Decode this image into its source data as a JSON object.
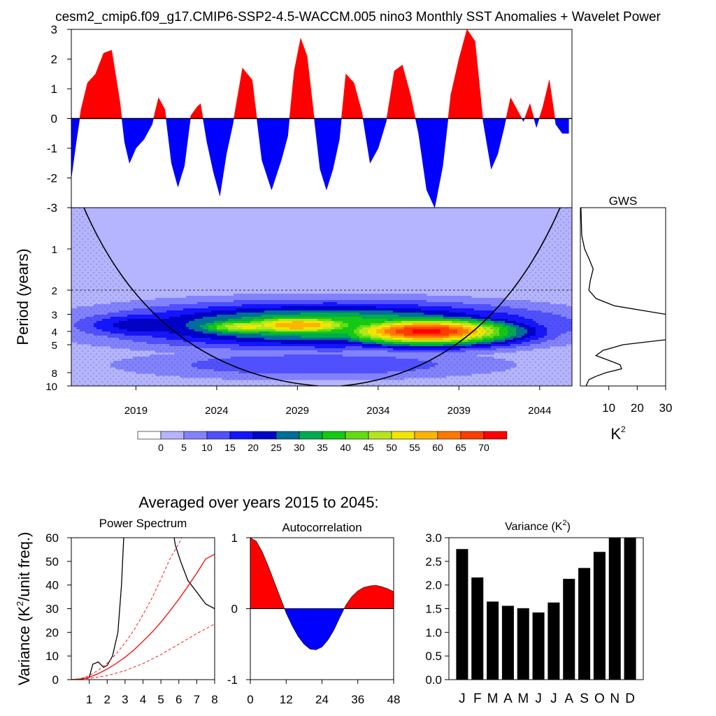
{
  "title": "cesm2_cmip6.f09_g17.CMIP6-SSP2-4.5-WACCM.005 nino3 Monthly SST Anomalies + Wavelet Power",
  "colors": {
    "positive": "#ff0000",
    "negative": "#0000ff",
    "bars": "#000000"
  },
  "chart_data": [
    {
      "id": "timeseries",
      "type": "area",
      "description_label": "nino3 SST anomaly",
      "x_range": [
        2015,
        2046
      ],
      "ylim": [
        -3,
        3
      ],
      "yticks": [
        3,
        2,
        1,
        0,
        -1,
        -2,
        -3
      ],
      "x": [
        2015.0,
        2015.3,
        2015.6,
        2016.0,
        2016.5,
        2017.0,
        2017.5,
        2018.0,
        2018.3,
        2018.6,
        2019.0,
        2019.5,
        2020.0,
        2020.4,
        2020.8,
        2021.2,
        2021.6,
        2022.0,
        2022.4,
        2022.8,
        2023.0,
        2023.4,
        2023.8,
        2024.2,
        2024.6,
        2025.0,
        2025.6,
        2026.2,
        2026.8,
        2027.4,
        2028.0,
        2028.4,
        2028.8,
        2029.2,
        2029.6,
        2030.0,
        2030.4,
        2030.8,
        2031.2,
        2031.6,
        2032.0,
        2032.5,
        2033.0,
        2033.5,
        2034.0,
        2034.5,
        2035.0,
        2035.5,
        2036.0,
        2036.5,
        2037.0,
        2037.5,
        2038.0,
        2038.5,
        2039.0,
        2039.5,
        2040.0,
        2040.5,
        2041.0,
        2041.4,
        2041.8,
        2042.2,
        2042.6,
        2043.0,
        2043.4,
        2043.8,
        2044.2,
        2044.6,
        2045.0,
        2045.4,
        2045.8
      ],
      "values": [
        -2.0,
        -0.8,
        0.3,
        1.2,
        1.5,
        2.2,
        2.3,
        0.6,
        -0.8,
        -1.5,
        -1.0,
        -0.7,
        -0.2,
        0.7,
        0.3,
        -1.5,
        -2.3,
        -1.6,
        0.1,
        0.4,
        0.5,
        -0.8,
        -1.8,
        -2.6,
        -1.2,
        -0.2,
        1.7,
        1.3,
        -1.4,
        -2.4,
        -1.4,
        -0.6,
        1.6,
        2.7,
        2.1,
        0.2,
        -1.7,
        -2.4,
        -1.7,
        -0.7,
        1.5,
        1.2,
        0.2,
        -1.5,
        -1.0,
        -0.1,
        1.6,
        1.8,
        0.8,
        -0.5,
        -2.4,
        -3.0,
        -1.6,
        0.8,
        2.0,
        3.0,
        2.6,
        -0.1,
        -1.7,
        -1.2,
        -0.3,
        0.7,
        0.3,
        -0.1,
        0.5,
        -0.3,
        0.4,
        1.3,
        -0.2,
        -0.5,
        -0.5
      ],
      "yaxis_label": ""
    },
    {
      "id": "wavelet",
      "type": "heatmap",
      "ylabel": "Period (years)",
      "period_ticks": [
        "1",
        "2",
        "3",
        "4",
        "5",
        "8",
        "10"
      ],
      "xticks": [
        "2019",
        "2024",
        "2029",
        "2034",
        "2039",
        "2044"
      ],
      "x_range": [
        2015,
        2046
      ],
      "period_range": [
        0.5,
        10
      ],
      "colorbar_levels": [
        "0",
        "5",
        "10",
        "15",
        "20",
        "25",
        "30",
        "35",
        "40",
        "45",
        "50",
        "55",
        "60",
        "65",
        "70"
      ],
      "colorbar_colors": [
        "#ffffff",
        "#b4b4ff",
        "#8282ff",
        "#5050ff",
        "#1414ff",
        "#0000c8",
        "#006e96",
        "#00aa50",
        "#14c814",
        "#64dc14",
        "#b4e61e",
        "#f0e600",
        "#ffb400",
        "#ff7800",
        "#ff3c00",
        "#ff0000"
      ],
      "blobs": [
        {
          "x": 2031.0,
          "period": 3.6,
          "rx_years": 13.0,
          "rlog": 0.12,
          "power": 40
        },
        {
          "x": 2037.0,
          "period": 4.0,
          "rx_years": 6.0,
          "rlog": 0.08,
          "power": 72
        },
        {
          "x": 2029.0,
          "period": 3.6,
          "rx_years": 5.0,
          "rlog": 0.06,
          "power": 60
        },
        {
          "x": 2026.0,
          "period": 3.7,
          "rx_years": 4.0,
          "rlog": 0.05,
          "power": 52
        },
        {
          "x": 2020.0,
          "period": 3.6,
          "rx_years": 5.0,
          "rlog": 0.08,
          "power": 25
        },
        {
          "x": 2030.0,
          "period": 7.0,
          "rx_years": 12.0,
          "rlog": 0.08,
          "power": 15
        }
      ]
    },
    {
      "id": "gws",
      "type": "line",
      "title": "GWS",
      "xlabel": "K",
      "xlabel_sup": "2",
      "xticks": [
        10,
        20,
        30
      ],
      "xlim": [
        0,
        30
      ],
      "period": [
        0.5,
        0.8,
        1.0,
        1.2,
        1.4,
        1.7,
        2.0,
        2.3,
        2.6,
        3.0,
        3.4,
        3.8,
        4.2,
        4.6,
        5.0,
        5.5,
        6.0,
        6.5,
        7.0,
        7.5,
        8.0,
        8.5,
        9.0,
        10.0
      ],
      "values": [
        0.2,
        0.5,
        1.5,
        3.2,
        4.5,
        3.5,
        3.0,
        5.5,
        12.0,
        30.0,
        40.0,
        42.0,
        40.0,
        30.0,
        15.0,
        8.0,
        5.5,
        10.0,
        14.0,
        14.5,
        9.0,
        5.5,
        3.0,
        2.0
      ]
    },
    {
      "id": "power_spectrum",
      "type": "line",
      "title": "Power Spectrum",
      "ylabel": "Variance (K",
      "ylabel_sup": "2",
      "ylabel_tail": "/unit freq.)",
      "ylim": [
        0,
        60
      ],
      "yticks": [
        0,
        10,
        20,
        30,
        40,
        50,
        60
      ],
      "xlim": [
        0,
        8
      ],
      "xticks": [
        1,
        2,
        3,
        4,
        5,
        6,
        7,
        8
      ],
      "series": [
        {
          "name": "spectrum",
          "color": "#000000",
          "style": "solid",
          "x": [
            0,
            0.5,
            1.0,
            1.2,
            1.5,
            1.8,
            2.0,
            2.3,
            2.6,
            2.8,
            3.0,
            5.5,
            5.8,
            6.1,
            6.5,
            7.0,
            7.5,
            8.0
          ],
          "y": [
            0,
            0.3,
            1.0,
            6.5,
            7.5,
            5.2,
            6.0,
            10.0,
            20.0,
            40.0,
            72.0,
            72.0,
            57.0,
            50.0,
            42.0,
            37.0,
            32.0,
            30.0
          ]
        },
        {
          "name": "red noise",
          "color": "#ff0000",
          "style": "solid",
          "x": [
            0,
            0.5,
            1,
            1.5,
            2,
            2.5,
            3,
            3.5,
            4,
            4.5,
            5,
            5.5,
            6,
            6.5,
            7,
            7.5,
            8
          ],
          "y": [
            0,
            0.2,
            1.0,
            2.5,
            4.5,
            6.8,
            9.5,
            12.6,
            16.2,
            20.0,
            24.3,
            29.0,
            34.0,
            39.4,
            45.0,
            51.0,
            53.0
          ]
        },
        {
          "name": "upper bound",
          "color": "#ff0000",
          "style": "dashed",
          "x": [
            0,
            0.5,
            1,
            1.5,
            2,
            2.5,
            3,
            3.5,
            4,
            4.5,
            5,
            5.5,
            6,
            6.3
          ],
          "y": [
            0,
            0.4,
            1.7,
            4.0,
            7.0,
            10.8,
            15.6,
            21.0,
            27.5,
            34.5,
            42.5,
            51.0,
            57.5,
            62.0
          ]
        },
        {
          "name": "lower bound",
          "color": "#ff0000",
          "style": "dashed",
          "x": [
            0,
            1,
            2,
            3,
            4,
            5,
            6,
            7,
            8
          ],
          "y": [
            0,
            0.5,
            1.7,
            3.8,
            6.8,
            10.6,
            15.0,
            19.5,
            23.5
          ]
        }
      ]
    },
    {
      "id": "autocorrelation",
      "type": "area",
      "title": "Autocorrelation",
      "ylim": [
        -1,
        1
      ],
      "yticks": [
        1,
        0,
        -1
      ],
      "xlim": [
        0,
        48
      ],
      "xticks": [
        0,
        12,
        24,
        36,
        48
      ],
      "x": [
        0,
        2,
        4,
        6,
        8,
        10,
        12,
        14,
        16,
        18,
        20,
        22,
        24,
        26,
        28,
        30,
        32,
        34,
        36,
        38,
        40,
        42,
        44,
        46,
        48
      ],
      "values": [
        1.0,
        0.95,
        0.8,
        0.6,
        0.38,
        0.16,
        -0.06,
        -0.24,
        -0.39,
        -0.5,
        -0.57,
        -0.58,
        -0.54,
        -0.44,
        -0.3,
        -0.12,
        0.05,
        0.17,
        0.25,
        0.3,
        0.32,
        0.33,
        0.31,
        0.28,
        0.24
      ]
    },
    {
      "id": "variance",
      "type": "bar",
      "title": "Variance (K",
      "title_sup": "2",
      "title_tail": ")",
      "categories": [
        "J",
        "F",
        "M",
        "A",
        "M",
        "J",
        "J",
        "A",
        "S",
        "O",
        "N",
        "D"
      ],
      "values": [
        2.76,
        2.16,
        1.65,
        1.56,
        1.51,
        1.42,
        1.63,
        2.13,
        2.36,
        2.7,
        3.0,
        3.0
      ],
      "ylim": [
        0,
        3
      ],
      "yticks": [
        "0.0",
        "0.5",
        "1.0",
        "1.5",
        "2.0",
        "2.5",
        "3.0"
      ]
    }
  ],
  "averaged_caption": "Averaged over years 2015 to 2045:"
}
